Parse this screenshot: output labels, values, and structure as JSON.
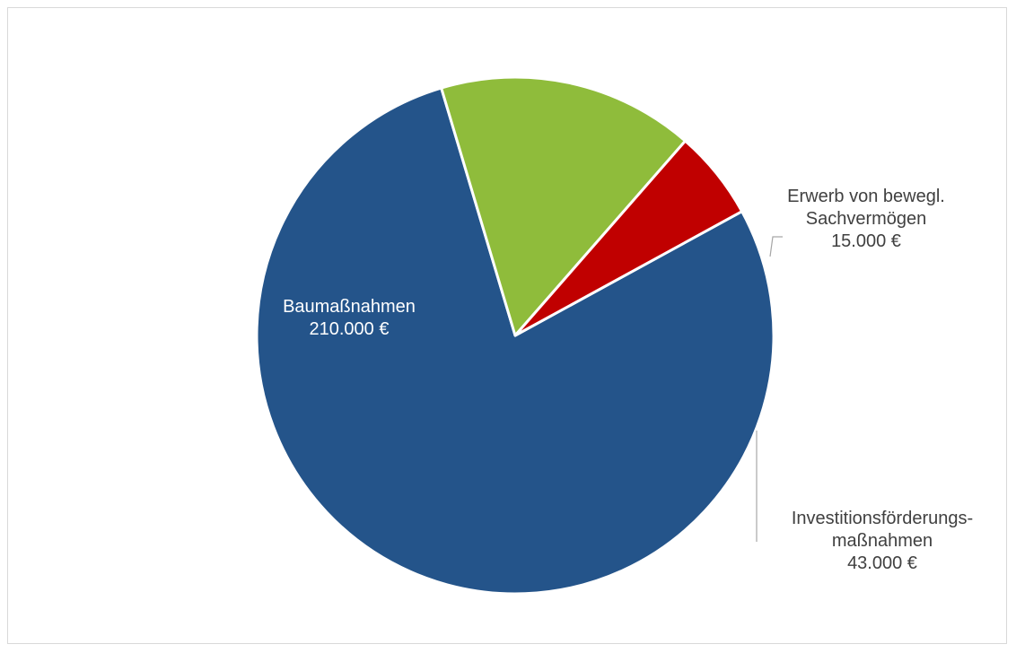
{
  "chart_data": {
    "type": "pie",
    "title": "",
    "slices": [
      {
        "label": "Baumaßnahmen",
        "value": 210000,
        "value_label": "210.000 €",
        "color": "#24548a"
      },
      {
        "label": "Investitionsförderungsmaßnahmen",
        "value": 43000,
        "value_label": "43.000 €",
        "color": "#8fbc3b"
      },
      {
        "label": "Erwerb von bewegl. Sachvermögen",
        "value": 15000,
        "value_label": "15.000 €",
        "color": "#c00000"
      }
    ],
    "data_labels": [
      {
        "lines": [
          "Baumaßnahmen",
          "210.000 €"
        ]
      },
      {
        "lines": [
          "Investitionsförderungs-",
          "maßnahmen",
          "43.000 €"
        ]
      },
      {
        "lines": [
          "Erwerb von bewegl.",
          "Sachvermögen",
          "15.000 €"
        ]
      }
    ]
  }
}
